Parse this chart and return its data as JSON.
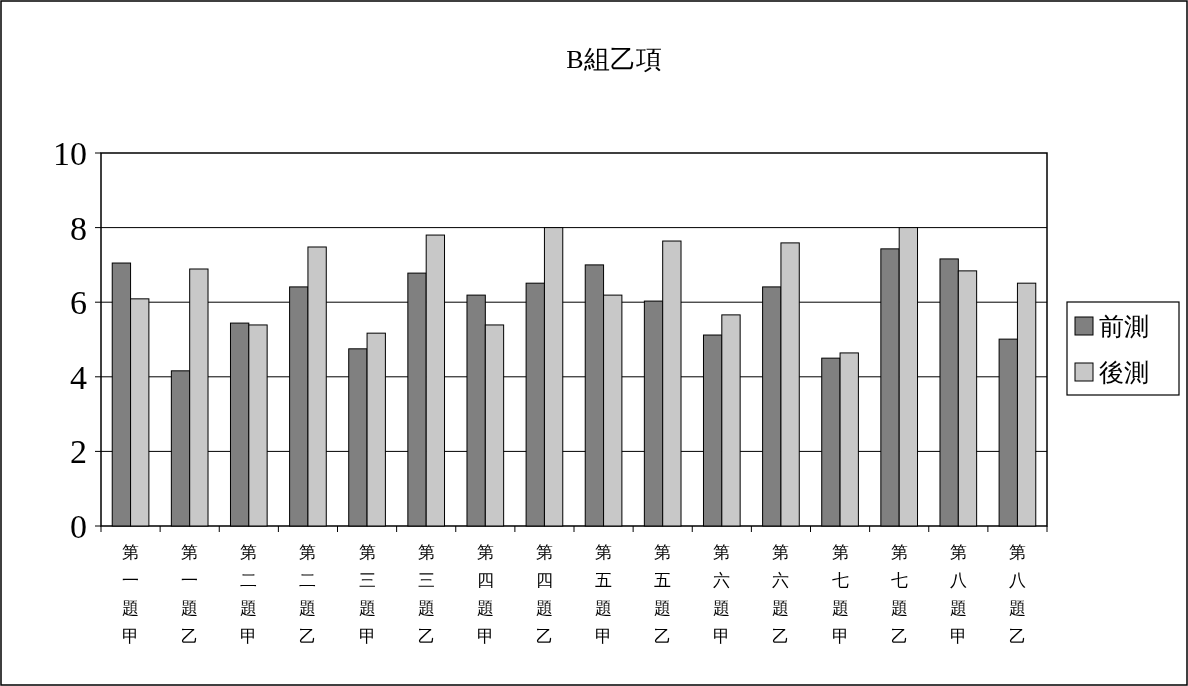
{
  "chart_data": {
    "type": "bar",
    "title": "B組乙項",
    "categories": [
      "第一題甲",
      "第一題乙",
      "第二題甲",
      "第二題乙",
      "第三題甲",
      "第三題乙",
      "第四題甲",
      "第四題乙",
      "第五題甲",
      "第五題乙",
      "第六題甲",
      "第六題乙",
      "第七題甲",
      "第七題乙",
      "第八題甲",
      "第八題乙"
    ],
    "series": [
      {
        "name": "前測",
        "color": "#808080",
        "values": [
          7.05,
          4.16,
          5.44,
          6.41,
          4.75,
          6.78,
          6.19,
          6.51,
          7.0,
          6.03,
          5.12,
          6.41,
          4.5,
          7.43,
          7.16,
          5.01
        ]
      },
      {
        "name": "後測",
        "color": "#c8c8c8",
        "values": [
          6.09,
          6.89,
          5.39,
          7.48,
          5.17,
          7.8,
          5.39,
          8.0,
          6.19,
          7.64,
          5.66,
          7.59,
          4.64,
          8.0,
          6.84,
          6.51
        ]
      }
    ],
    "ylim": [
      0,
      10
    ],
    "yticks": [
      0,
      2,
      4,
      6,
      8,
      10
    ],
    "grid": "y",
    "legend": "right"
  }
}
